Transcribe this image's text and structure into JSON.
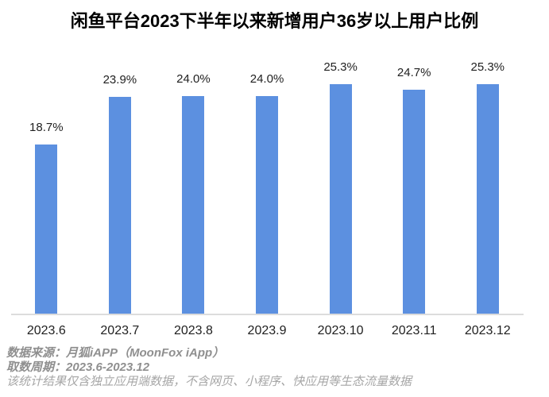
{
  "title": "闲鱼平台2023下半年以来新增用户36岁以上用户比例",
  "chart_data": {
    "type": "bar",
    "title": "闲鱼平台2023下半年以来新增用户36岁以上用户比例",
    "categories": [
      "2023.6",
      "2023.7",
      "2023.8",
      "2023.9",
      "2023.10",
      "2023.11",
      "2023.12"
    ],
    "values": [
      18.7,
      23.9,
      24.0,
      24.0,
      25.3,
      24.7,
      25.3
    ],
    "value_labels": [
      "18.7%",
      "23.9%",
      "24.0%",
      "24.0%",
      "25.3%",
      "24.7%",
      "25.3%"
    ],
    "xlabel": "",
    "ylabel": "",
    "ylim": [
      0,
      28.8
    ],
    "grid": false,
    "legend": false,
    "bar_color": "#5C90E0",
    "axis_color": "#DCDCDC"
  },
  "footer": {
    "source": "数据来源：月狐iAPP（MoonFox iApp）",
    "period": "取数周期：2023.6-2023.12",
    "disclaimer": "该统计结果仅含独立应用端数据，不含网页、小程序、快应用等生态流量数据"
  }
}
